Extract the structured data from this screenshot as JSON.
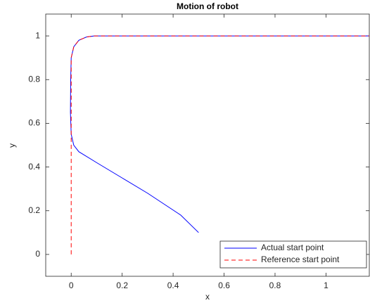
{
  "chart_data": {
    "type": "line",
    "title": "Motion of robot",
    "xlabel": "x",
    "ylabel": "y",
    "xlim": [
      -0.1,
      1.17
    ],
    "ylim": [
      -0.1,
      1.1
    ],
    "xticks": [
      0,
      0.2,
      0.4,
      0.6,
      0.8,
      1
    ],
    "yticks": [
      0,
      0.2,
      0.4,
      0.6,
      0.8,
      1
    ],
    "grid": false,
    "legend": "lower-right",
    "series": [
      {
        "name": "Actual start point",
        "color": "#0000ff",
        "dash": "solid",
        "x": [
          0.5,
          0.43,
          0.3,
          0.2,
          0.1,
          0.03,
          0.01,
          0.0,
          -0.003,
          -0.002,
          0.0,
          0.01,
          0.03,
          0.06,
          0.09,
          1.17
        ],
        "values": [
          0.1,
          0.18,
          0.28,
          0.35,
          0.42,
          0.47,
          0.5,
          0.55,
          0.65,
          0.8,
          0.9,
          0.95,
          0.98,
          0.995,
          1,
          1
        ]
      },
      {
        "name": "Reference start point",
        "color": "#ff0000",
        "dash": "dashed",
        "x": [
          0,
          0,
          0.01,
          0.03,
          0.06,
          0.09,
          1.17
        ],
        "values": [
          0,
          0.9,
          0.95,
          0.98,
          0.995,
          1,
          1
        ]
      }
    ]
  }
}
